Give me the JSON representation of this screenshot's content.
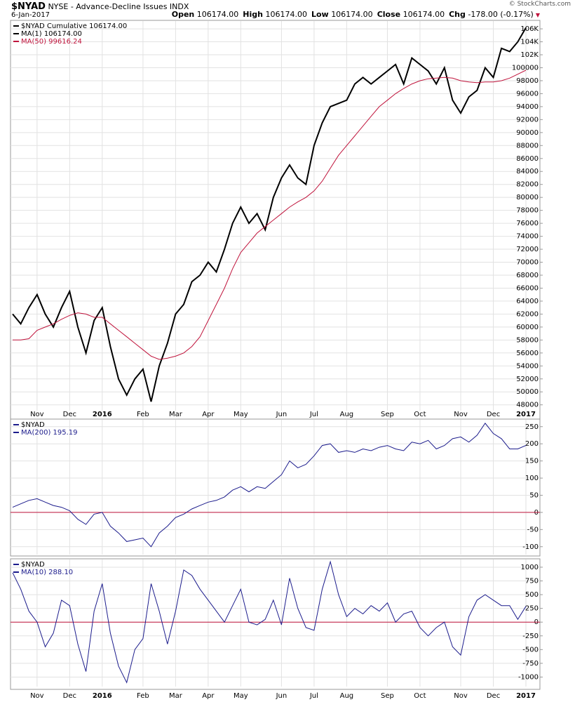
{
  "header": {
    "symbol": "$NYAD",
    "name": "NYSE - Advance-Decline Issues INDX",
    "date": "6-Jan-2017",
    "source": "© StockCharts.com",
    "stats": [
      {
        "label": "Open",
        "value": "106174.00"
      },
      {
        "label": "High",
        "value": "106174.00"
      },
      {
        "label": "Low",
        "value": "106174.00"
      },
      {
        "label": "Close",
        "value": "106174.00"
      },
      {
        "label": "Chg",
        "value": "-178.00 (-0.17%)"
      }
    ]
  },
  "chart_data": [
    {
      "type": "line",
      "title": "$NYAD Cumulative 106174.00",
      "x_labels": true,
      "categories": [
        null,
        null,
        null,
        "Nov",
        null,
        null,
        null,
        "Dec",
        null,
        null,
        null,
        "2016",
        null,
        null,
        null,
        null,
        "Feb",
        null,
        null,
        null,
        "Mar",
        null,
        null,
        null,
        "Apr",
        null,
        null,
        null,
        "May",
        null,
        null,
        null,
        null,
        "Jun",
        null,
        null,
        null,
        "Jul",
        null,
        null,
        null,
        "Aug",
        null,
        null,
        null,
        null,
        "Sep",
        null,
        null,
        null,
        "Oct",
        null,
        null,
        null,
        null,
        "Nov",
        null,
        null,
        null,
        "Dec",
        null,
        null,
        null,
        "2017"
      ],
      "series": [
        {
          "name": "MA(1) 106174.00",
          "color": "#000000",
          "width": 2,
          "values": [
            62000,
            60500,
            63000,
            65000,
            62000,
            60000,
            63000,
            65500,
            60000,
            56000,
            61000,
            63000,
            57000,
            52000,
            49500,
            52000,
            53500,
            48500,
            54000,
            57500,
            62000,
            63500,
            67000,
            68000,
            70000,
            68500,
            72000,
            76000,
            78500,
            76000,
            77500,
            75000,
            80000,
            83000,
            85000,
            83000,
            82000,
            88000,
            91500,
            94000,
            94500,
            95000,
            97500,
            98500,
            97500,
            98500,
            99500,
            100500,
            97500,
            101500,
            100500,
            99500,
            97500,
            100000,
            95000,
            93000,
            95500,
            96500,
            100000,
            98500,
            103000,
            102500,
            104000,
            106174
          ]
        },
        {
          "name": "MA(50) 99616.24",
          "color": "#c0143c",
          "width": 1,
          "values": [
            58000,
            58000,
            58200,
            59500,
            60000,
            60500,
            61200,
            61800,
            62200,
            62000,
            61500,
            61500,
            60500,
            59500,
            58500,
            57500,
            56500,
            55500,
            55000,
            55200,
            55500,
            56000,
            57000,
            58500,
            61000,
            63500,
            66000,
            69000,
            71500,
            73000,
            74500,
            75500,
            76500,
            77500,
            78500,
            79300,
            80000,
            81000,
            82500,
            84500,
            86500,
            88000,
            89500,
            91000,
            92500,
            94000,
            95000,
            96000,
            96800,
            97500,
            98000,
            98300,
            98400,
            98500,
            98400,
            98000,
            97800,
            97700,
            97800,
            97800,
            98000,
            98400,
            99000,
            99616.24
          ]
        }
      ],
      "ylim": [
        47100,
        107200
      ],
      "yticks": [
        48000,
        50000,
        52000,
        54000,
        56000,
        58000,
        60000,
        62000,
        64000,
        66000,
        68000,
        70000,
        72000,
        74000,
        76000,
        78000,
        80000,
        82000,
        84000,
        86000,
        88000,
        90000,
        92000,
        94000,
        96000,
        98000,
        100000,
        {
          "value": 102000,
          "label": "102K"
        },
        {
          "value": 104000,
          "label": "104K"
        },
        {
          "value": 106000,
          "label": "106K"
        }
      ],
      "grid": true
    },
    {
      "type": "line",
      "title": "$NYAD",
      "x_labels": false,
      "categories": [
        null,
        null,
        null,
        "Nov",
        null,
        null,
        null,
        "Dec",
        null,
        null,
        null,
        "2016",
        null,
        null,
        null,
        null,
        "Feb",
        null,
        null,
        null,
        "Mar",
        null,
        null,
        null,
        "Apr",
        null,
        null,
        null,
        "May",
        null,
        null,
        null,
        null,
        "Jun",
        null,
        null,
        null,
        "Jul",
        null,
        null,
        null,
        "Aug",
        null,
        null,
        null,
        null,
        "Sep",
        null,
        null,
        null,
        "Oct",
        null,
        null,
        null,
        null,
        "Nov",
        null,
        null,
        null,
        "Dec",
        null,
        null,
        null,
        "2017"
      ],
      "series": [
        {
          "name": "MA(200) 195.19",
          "color": "#1c1c8c",
          "width": 1,
          "values": [
            15,
            25,
            35,
            40,
            30,
            20,
            15,
            5,
            -20,
            -35,
            -5,
            0,
            -40,
            -60,
            -85,
            -80,
            -75,
            -100,
            -60,
            -40,
            -15,
            -5,
            10,
            20,
            30,
            35,
            45,
            65,
            75,
            60,
            75,
            70,
            90,
            110,
            150,
            130,
            140,
            165,
            195,
            200,
            175,
            180,
            175,
            185,
            180,
            190,
            195,
            185,
            180,
            205,
            200,
            210,
            185,
            195,
            215,
            220,
            205,
            225,
            260,
            230,
            215,
            185,
            185,
            195.19
          ]
        }
      ],
      "ylim": [
        -123,
        270
      ],
      "yticks": [
        -100,
        -50,
        0,
        50,
        100,
        150,
        200,
        250
      ],
      "grid": true,
      "ref_line": {
        "value": 0,
        "color": "#c0143c"
      }
    },
    {
      "type": "line",
      "title": "$NYAD",
      "x_labels": true,
      "categories": [
        null,
        null,
        null,
        "Nov",
        null,
        null,
        null,
        "Dec",
        null,
        null,
        null,
        "2016",
        null,
        null,
        null,
        null,
        "Feb",
        null,
        null,
        null,
        "Mar",
        null,
        null,
        null,
        "Apr",
        null,
        null,
        null,
        "May",
        null,
        null,
        null,
        null,
        "Jun",
        null,
        null,
        null,
        "Jul",
        null,
        null,
        null,
        "Aug",
        null,
        null,
        null,
        null,
        "Sep",
        null,
        null,
        null,
        "Oct",
        null,
        null,
        null,
        null,
        "Nov",
        null,
        null,
        null,
        "Dec",
        null,
        null,
        null,
        "2017"
      ],
      "series": [
        {
          "name": "MA(10) 288.10",
          "color": "#1c1c8c",
          "width": 1,
          "values": [
            900,
            600,
            200,
            0,
            -450,
            -200,
            400,
            300,
            -400,
            -900,
            200,
            700,
            -200,
            -800,
            -1100,
            -500,
            -300,
            700,
            200,
            -400,
            200,
            950,
            850,
            600,
            400,
            200,
            0,
            300,
            600,
            0,
            -50,
            50,
            400,
            -50,
            800,
            250,
            -100,
            -150,
            600,
            1100,
            500,
            100,
            250,
            150,
            300,
            200,
            350,
            0,
            150,
            200,
            -100,
            -250,
            -100,
            0,
            -450,
            -600,
            100,
            400,
            500,
            400,
            300,
            300,
            50,
            288.1
          ]
        }
      ],
      "ylim": [
        -1173,
        1140
      ],
      "yticks": [
        -1000,
        -750,
        -500,
        -250,
        0,
        250,
        500,
        750,
        1000
      ],
      "grid": true,
      "ref_line": {
        "value": 0,
        "color": "#c0143c"
      }
    }
  ]
}
